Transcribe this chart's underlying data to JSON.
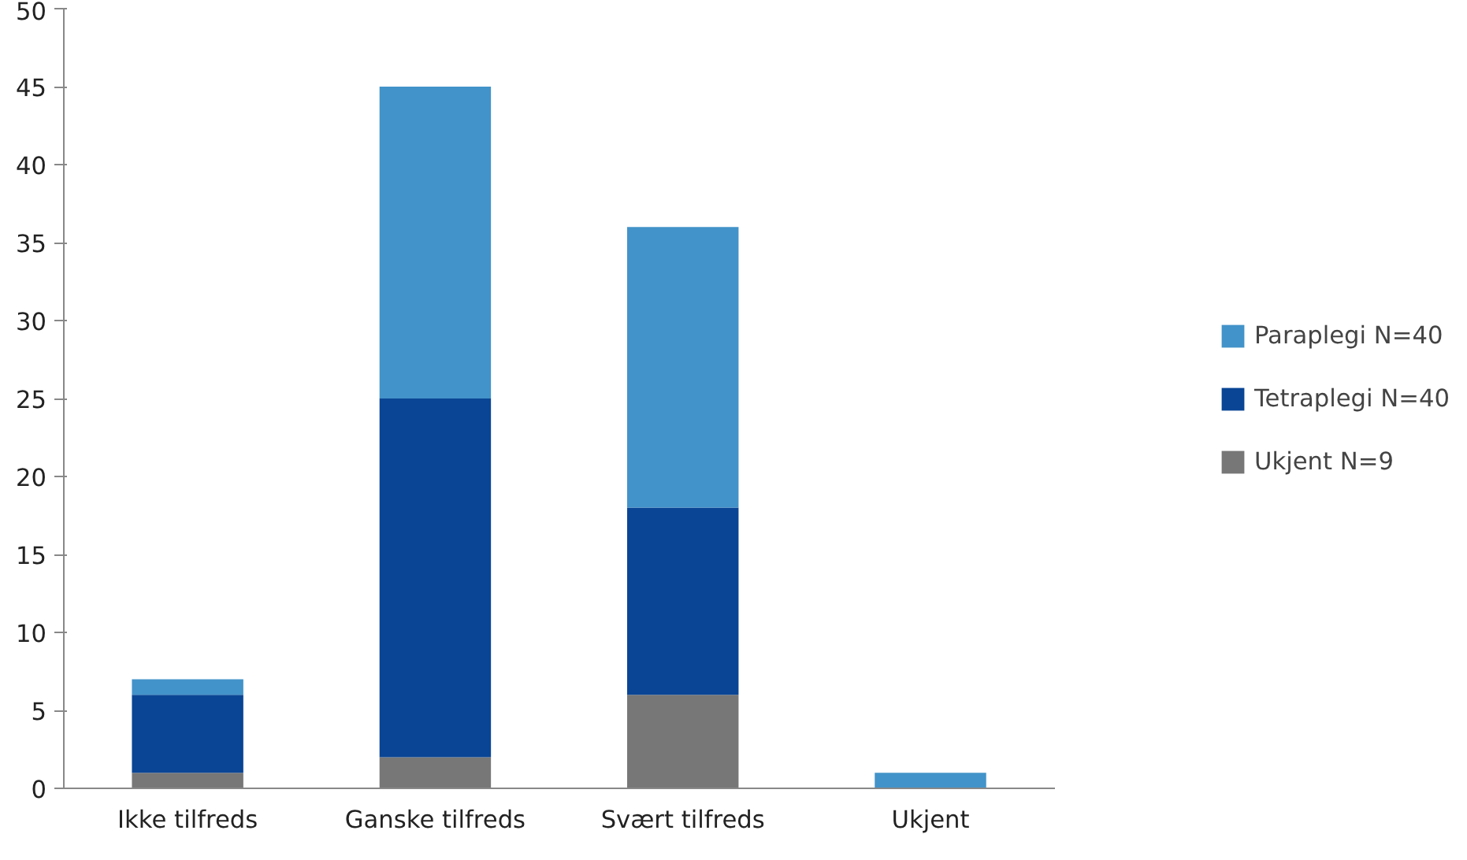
{
  "chart_data": {
    "type": "bar",
    "stacked": true,
    "categories": [
      "Ikke tilfreds",
      "Ganske tilfreds",
      "Svært tilfreds",
      "Ukjent"
    ],
    "series": [
      {
        "name": "Ukjent N=9",
        "color": "#777777",
        "values": [
          1,
          2,
          6,
          0
        ]
      },
      {
        "name": "Tetraplegi N=40",
        "color": "#0a4595",
        "values": [
          5,
          23,
          12,
          0
        ]
      },
      {
        "name": "Paraplegi N=40",
        "color": "#4293c9",
        "values": [
          1,
          20,
          18,
          1
        ]
      }
    ],
    "ylim": [
      0,
      50
    ],
    "yticks": [
      0,
      5,
      10,
      15,
      20,
      25,
      30,
      35,
      40,
      45,
      50
    ],
    "grid": false,
    "legend": "right"
  }
}
